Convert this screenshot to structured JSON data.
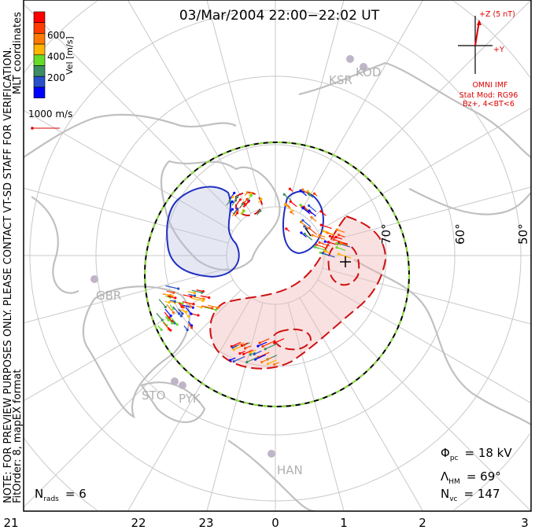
{
  "title": "03/Mar/2004 22:00−22:02 UT",
  "side_note_1": "NOTE: FOR PREVIEW PURPOSES ONLY. PLEASE CONTACT VT-SD STAFF FOR VERIFICATION.",
  "side_note_2": "FitOrder: 8, mapEX format",
  "coord_label": "MLT coordinates",
  "colorbar": {
    "label": "Vel [m/s]",
    "ticks": [
      "200",
      "400",
      "600"
    ],
    "colors": [
      "#ff0000",
      "#ff3c00",
      "#ff7800",
      "#ffb400",
      "#64dc28",
      "#3c8c64",
      "#2850c8",
      "#0000ff"
    ]
  },
  "scale_vector_label": "1000 m/s",
  "imf": {
    "z_label": "+Z (5 nT)",
    "y_label": "+Y",
    "source": "OMNI IMF",
    "model": "Stat Mod: RG96",
    "condition": "Bz+, 4<BT<6"
  },
  "stations": [
    "KSR",
    "KOD",
    "GBR",
    "STO",
    "PYK",
    "HAN"
  ],
  "lat_labels": [
    "70°",
    "60°",
    "50°"
  ],
  "mlt_labels": [
    "21",
    "22",
    "23",
    "0",
    "1",
    "2",
    "3"
  ],
  "stats": {
    "phi_pc_sym": "Φ",
    "phi_pc_sub": "pc",
    "phi_pc_val": "= 18 kV",
    "lambda_sym": "Λ",
    "lambda_sub": "HM",
    "lambda_val": "= 69°",
    "nvc_sym": "N",
    "nvc_sub": "vc",
    "nvc_val": "= 147",
    "nrads_sym": "N",
    "nrads_sub": "rads",
    "nrads_val": "= 6"
  }
}
